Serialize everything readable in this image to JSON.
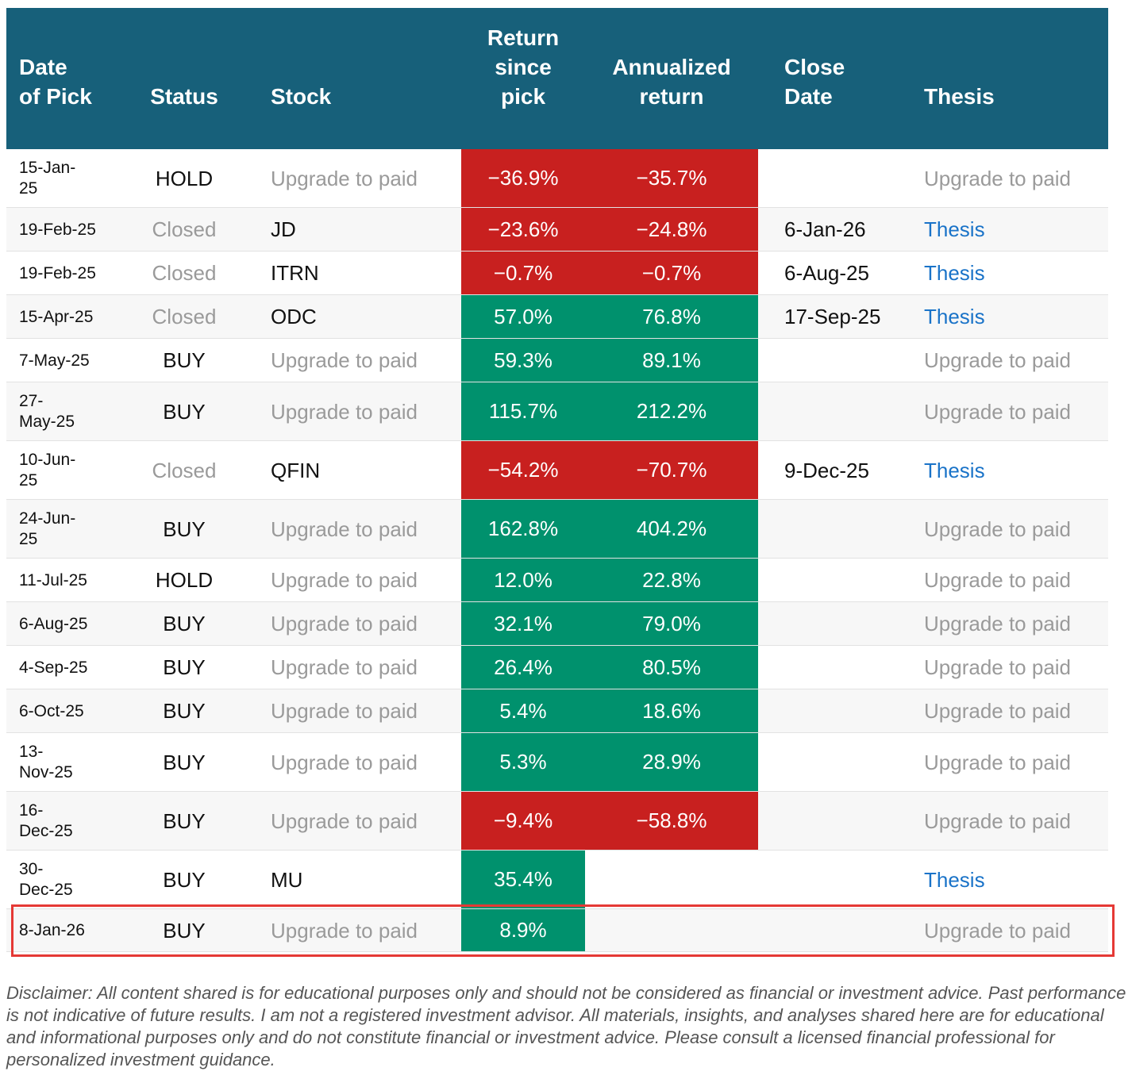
{
  "table": {
    "header": [
      "Date of Pick",
      "Status",
      "Stock",
      "Return since pick",
      "Annualized return",
      "Close Date",
      "Thesis"
    ],
    "rows": [
      [
        "15-Jan-25",
        "HOLD",
        "Upgrade to paid",
        "−36.9%",
        "−35.7%",
        null,
        "Upgrade to paid"
      ],
      [
        "19-Feb-25",
        "Closed",
        "JD",
        "−23.6%",
        "−24.8%",
        "6-Jan-26",
        "Thesis"
      ],
      [
        "19-Feb-25",
        "Closed",
        "ITRN",
        "−0.7%",
        "−0.7%",
        "6-Aug-25",
        "Thesis"
      ],
      [
        "15-Apr-25",
        "Closed",
        "ODC",
        "57.0%",
        "76.8%",
        "17-Sep-25",
        "Thesis"
      ],
      [
        "7-May-25",
        "BUY",
        "Upgrade to paid",
        "59.3%",
        "89.1%",
        null,
        "Upgrade to paid"
      ],
      [
        "27-May-25",
        "BUY",
        "Upgrade to paid",
        "115.7%",
        "212.2%",
        null,
        "Upgrade to paid"
      ],
      [
        "10-Jun-25",
        "Closed",
        "QFIN",
        "−54.2%",
        "−70.7%",
        "9-Dec-25",
        "Thesis"
      ],
      [
        "24-Jun-25",
        "BUY",
        "Upgrade to paid",
        "162.8%",
        "404.2%",
        null,
        "Upgrade to paid"
      ],
      [
        "11-Jul-25",
        "HOLD",
        "Upgrade to paid",
        "12.0%",
        "22.8%",
        null,
        "Upgrade to paid"
      ],
      [
        "6-Aug-25",
        "BUY",
        "Upgrade to paid",
        "32.1%",
        "79.0%",
        null,
        "Upgrade to paid"
      ],
      [
        "4-Sep-25",
        "BUY",
        "Upgrade to paid",
        "26.4%",
        "80.5%",
        null,
        "Upgrade to paid"
      ],
      [
        "6-Oct-25",
        "BUY",
        "Upgrade to paid",
        "5.4%",
        "18.6%",
        null,
        "Upgrade to paid"
      ],
      [
        "13-Nov-25",
        "BUY",
        "Upgrade to paid",
        "5.3%",
        "28.9%",
        null,
        "Upgrade to paid"
      ],
      [
        "16-Dec-25",
        "BUY",
        "Upgrade to paid",
        "−9.4%",
        "−58.8%",
        null,
        "Upgrade to paid"
      ],
      [
        "30-Dec-25",
        "BUY",
        "MU",
        "35.4%",
        null,
        null,
        "Thesis"
      ],
      [
        "8-Jan-26",
        "BUY",
        "Upgrade to paid",
        "8.9%",
        null,
        null,
        "Upgrade to paid"
      ]
    ]
  },
  "disclaimer": "Disclaimer: All content shared is for educational purposes only and should not be considered as financial or investment advice. Past performance is not indicative of future results. I am not a registered investment advisor. All materials, insights, and analyses shared here are for educational and informational purposes only and do not constitute financial or investment advice. Please consult a licensed financial professional for personalized investment guidance."
}
